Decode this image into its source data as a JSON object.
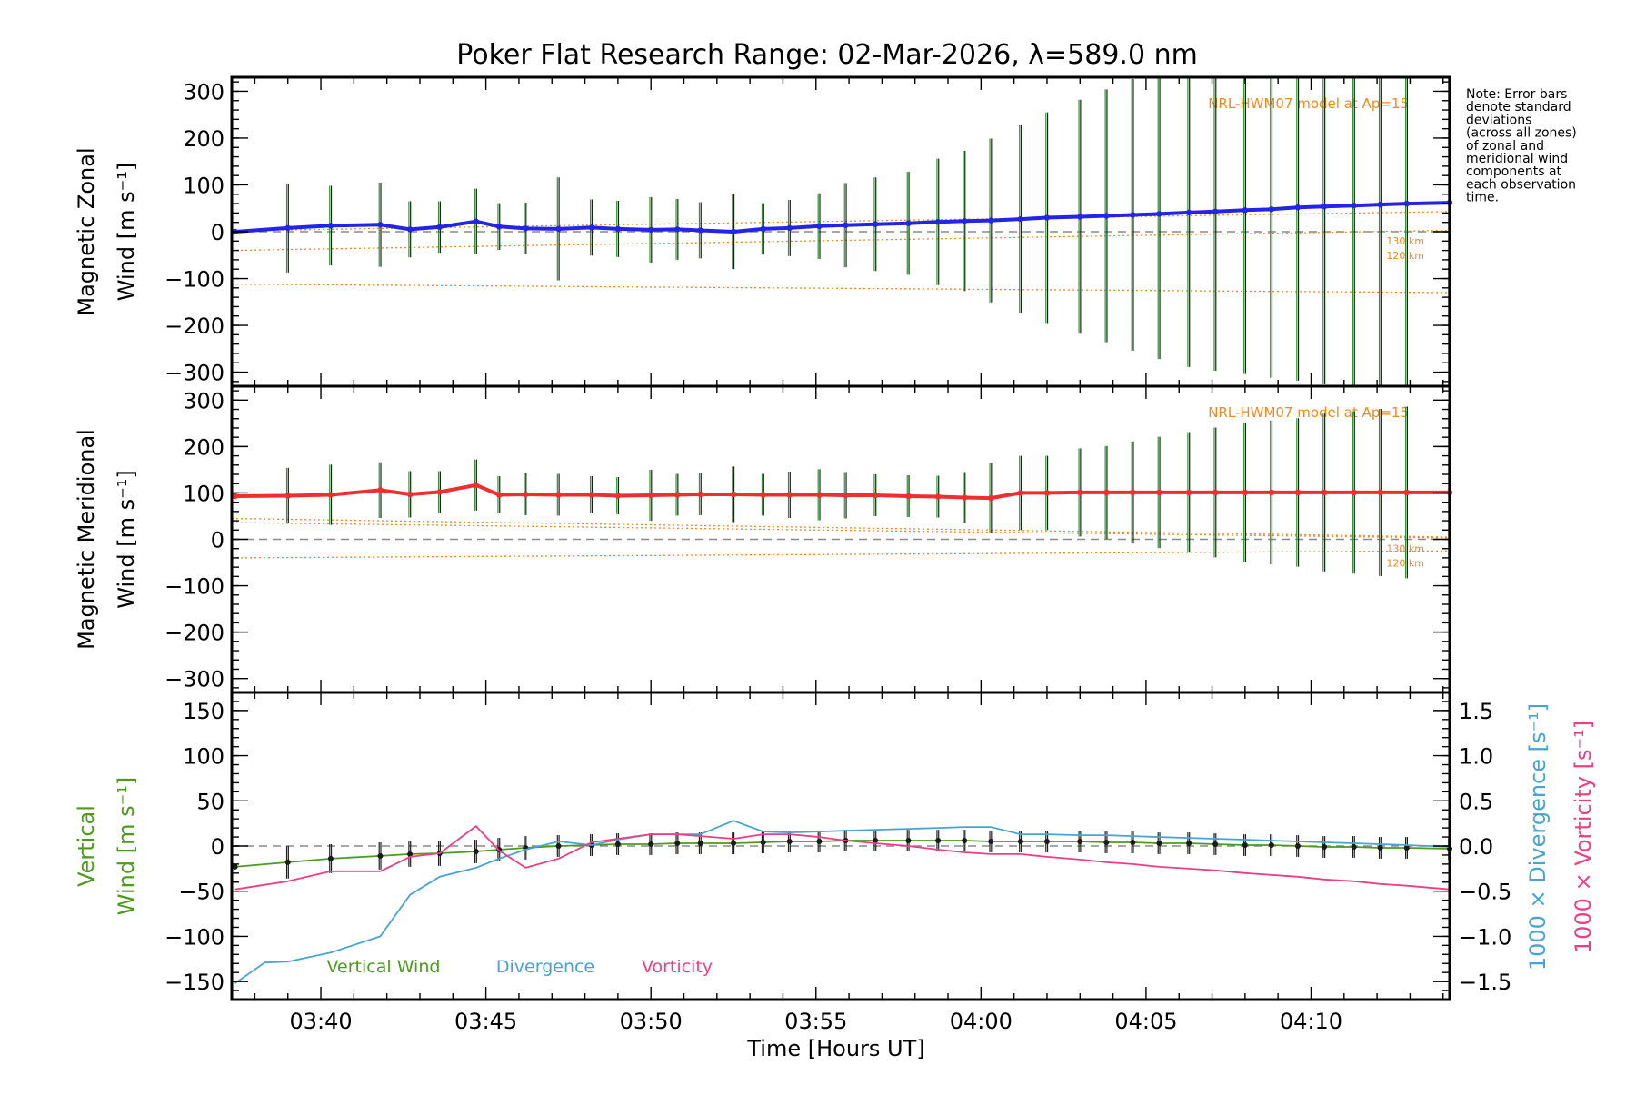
{
  "chart_data": {
    "type": "line",
    "title": "Poker Flat Research Range: 02-Mar-2026, λ=589.0 nm",
    "xlabel": "Time [Hours UT]",
    "x_ticks": [
      "03:40",
      "03:45",
      "03:50",
      "03:55",
      "04:00",
      "04:05",
      "04:10"
    ],
    "x_tick_minutes": [
      220,
      225,
      230,
      235,
      240,
      245,
      250
    ],
    "xlim_minutes": [
      217.3,
      254.2
    ],
    "note_lines": [
      "Note: Error bars",
      "denote standard",
      "deviations",
      "(across all zones)",
      "of zonal and",
      "meridional wind",
      "components at",
      "each observation",
      "time."
    ],
    "colors": {
      "zonal": "#2424e6",
      "meridional": "#ef2f2f",
      "vertical": "#4d9a1e",
      "divergence": "#4aa3d0",
      "vorticity": "#ee3f86",
      "model": "#ef8a1e",
      "err": "#1f1f1f",
      "zero": "#8a8a8a"
    },
    "panels": [
      {
        "id": "zonal",
        "ylabel_line1": "Magnetic Zonal",
        "ylabel_line2": "Wind [m s⁻¹]",
        "ylim": [
          -330,
          330
        ],
        "y_ticks": [
          300,
          200,
          100,
          0,
          -100,
          -200,
          -300
        ],
        "y_tick_labels": [
          "300",
          "200",
          "100",
          "0",
          "−100",
          "−200",
          "−300"
        ],
        "model_label": "NRL-HWM07 model at Ap=15",
        "alt_labels": [
          "130 km",
          "120 km"
        ],
        "model_lines": [
          {
            "start": 2,
            "end": 43
          },
          {
            "start": -40,
            "end": 3
          },
          {
            "start": -112,
            "end": -130
          }
        ],
        "series": {
          "name": "Magnetic Zonal Wind",
          "x": [
            217.4,
            219.0,
            220.3,
            221.8,
            222.7,
            223.6,
            224.7,
            225.4,
            226.2,
            227.2,
            228.2,
            229.0,
            230.0,
            230.8,
            231.5,
            232.5,
            233.4,
            234.2,
            235.1,
            235.9,
            236.8,
            237.8,
            238.7,
            239.5,
            240.3,
            241.2,
            242.0,
            243.0,
            243.8,
            244.6,
            245.4,
            246.3,
            247.1,
            248.0,
            248.8,
            249.6,
            250.4,
            251.3,
            252.1,
            252.9,
            254.2
          ],
          "y": [
            0,
            8,
            13,
            15,
            5,
            10,
            22,
            11,
            7,
            6,
            9,
            6,
            4,
            5,
            3,
            0,
            6,
            8,
            12,
            14,
            16,
            18,
            21,
            23,
            24,
            27,
            30,
            32,
            34,
            36,
            38,
            41,
            43,
            46,
            48,
            52,
            54,
            56,
            58,
            60,
            62
          ],
          "err": [
            0,
            95,
            85,
            90,
            60,
            55,
            70,
            50,
            55,
            110,
            60,
            60,
            70,
            65,
            60,
            80,
            55,
            60,
            70,
            90,
            100,
            110,
            135,
            150,
            175,
            200,
            225,
            250,
            270,
            290,
            310,
            330,
            340,
            350,
            360,
            370,
            380,
            390,
            400,
            410,
            420
          ]
        }
      },
      {
        "id": "meridional",
        "ylabel_line1": "Magnetic Meridional",
        "ylabel_line2": "Wind [m s⁻¹]",
        "ylim": [
          -330,
          330
        ],
        "y_ticks": [
          300,
          200,
          100,
          0,
          -100,
          -200,
          -300
        ],
        "y_tick_labels": [
          "300",
          "200",
          "100",
          "0",
          "−100",
          "−200",
          "−300"
        ],
        "model_label": "NRL-HWM07 model at Ap=15",
        "alt_labels": [
          "130 km",
          "120 km"
        ],
        "model_lines": [
          {
            "start": 36,
            "end": 3
          },
          {
            "start": -40,
            "end": -25
          },
          {
            "start": 45,
            "end": 5
          }
        ],
        "series": {
          "name": "Magnetic Meridional Wind",
          "x": [
            217.4,
            219.0,
            220.3,
            221.8,
            222.7,
            223.6,
            224.7,
            225.4,
            226.2,
            227.2,
            228.2,
            229.0,
            230.0,
            230.8,
            231.5,
            232.5,
            233.4,
            234.2,
            235.1,
            235.9,
            236.8,
            237.8,
            238.7,
            239.5,
            240.3,
            241.2,
            242.0,
            243.0,
            243.8,
            244.6,
            245.4,
            246.3,
            247.1,
            248.0,
            248.8,
            249.6,
            250.4,
            251.3,
            252.1,
            252.9,
            254.2
          ],
          "y": [
            93,
            94,
            96,
            106,
            97,
            102,
            117,
            96,
            97,
            96,
            96,
            94,
            95,
            96,
            97,
            97,
            96,
            96,
            96,
            95,
            95,
            93,
            92,
            90,
            89,
            100,
            100,
            101,
            101,
            101,
            101,
            101,
            101,
            101,
            101,
            101,
            101,
            101,
            101,
            101,
            101
          ],
          "err": [
            0,
            60,
            65,
            60,
            50,
            45,
            55,
            40,
            45,
            45,
            40,
            40,
            55,
            45,
            45,
            60,
            45,
            50,
            55,
            50,
            45,
            45,
            45,
            55,
            75,
            80,
            80,
            95,
            100,
            110,
            120,
            130,
            140,
            150,
            155,
            160,
            170,
            175,
            180,
            185,
            190
          ]
        }
      },
      {
        "id": "vertical",
        "ylabel_line1": "Vertical",
        "ylabel_line2": "Wind [m s⁻¹]",
        "right_label_1": "1000 × Divergence [s⁻¹]",
        "right_label_2": "1000 × Vorticity [s⁻¹]",
        "ylim": [
          -170,
          170
        ],
        "y_ticks": [
          150,
          100,
          50,
          0,
          -50,
          -100,
          -150
        ],
        "y_tick_labels": [
          "150",
          "100",
          "50",
          "0",
          "−50",
          "−100",
          "−150"
        ],
        "ylim_right": [
          -1.7,
          1.7
        ],
        "y_ticks_right": [
          1.5,
          1.0,
          0.5,
          0.0,
          -0.5,
          -1.0,
          -1.5
        ],
        "y_tick_labels_right": [
          "1.5",
          "1.0",
          "0.5",
          "0.0",
          "−0.5",
          "−1.0",
          "−1.5"
        ],
        "legend": [
          "Vertical Wind",
          "Divergence",
          "Vorticity"
        ],
        "series_vertical": {
          "name": "Vertical Wind",
          "x": [
            217.4,
            219.0,
            220.3,
            221.8,
            222.7,
            223.6,
            224.7,
            225.4,
            226.2,
            227.2,
            228.2,
            229.0,
            230.0,
            230.8,
            231.5,
            232.5,
            233.4,
            234.2,
            235.1,
            235.9,
            236.8,
            237.8,
            238.7,
            239.5,
            240.3,
            241.2,
            242.0,
            243.0,
            243.8,
            244.6,
            245.4,
            246.3,
            247.1,
            248.0,
            248.8,
            249.6,
            250.4,
            251.3,
            252.1,
            252.9,
            254.2
          ],
          "y": [
            -23,
            -18,
            -14,
            -11,
            -9,
            -8,
            -6,
            -4,
            -2,
            0,
            1,
            2,
            2,
            3,
            3,
            3,
            4,
            5,
            5,
            6,
            6,
            6,
            6,
            6,
            5,
            5,
            5,
            5,
            4,
            4,
            3,
            3,
            2,
            1,
            1,
            0,
            -1,
            -1,
            -2,
            -2,
            -3
          ],
          "err": [
            0,
            18,
            16,
            15,
            14,
            14,
            13,
            13,
            13,
            12,
            12,
            12,
            12,
            12,
            12,
            12,
            12,
            12,
            12,
            12,
            12,
            12,
            12,
            12,
            12,
            12,
            12,
            12,
            12,
            12,
            12,
            12,
            12,
            12,
            12,
            12,
            12,
            12,
            12,
            12,
            12
          ]
        },
        "series_divergence": {
          "name": "Divergence",
          "x": [
            217.4,
            218.3,
            219.0,
            220.3,
            221.8,
            222.7,
            223.6,
            224.7,
            225.4,
            226.2,
            227.2,
            228.2,
            229.0,
            230.0,
            230.8,
            231.5,
            232.5,
            233.4,
            234.2,
            235.1,
            235.9,
            236.8,
            237.8,
            238.7,
            239.5,
            240.3,
            241.2,
            242.0,
            243.0,
            243.8,
            244.6,
            245.4,
            246.3,
            247.1,
            248.0,
            248.8,
            249.6,
            250.4,
            251.3,
            252.1,
            252.9,
            254.2
          ],
          "y": [
            -1.52,
            -1.29,
            -1.28,
            -1.18,
            -1.0,
            -0.54,
            -0.34,
            -0.24,
            -0.14,
            -0.04,
            0.05,
            0.01,
            0.07,
            0.13,
            0.13,
            0.13,
            0.28,
            0.16,
            0.15,
            0.16,
            0.17,
            0.18,
            0.19,
            0.2,
            0.21,
            0.21,
            0.13,
            0.13,
            0.12,
            0.12,
            0.11,
            0.1,
            0.09,
            0.08,
            0.07,
            0.06,
            0.05,
            0.04,
            0.03,
            0.02,
            0.01,
            -0.01
          ]
        },
        "series_vorticity": {
          "name": "Vorticity",
          "x": [
            217.4,
            219.0,
            220.3,
            221.8,
            222.7,
            223.6,
            224.7,
            225.4,
            226.2,
            227.2,
            228.2,
            229.0,
            230.0,
            230.8,
            231.5,
            232.5,
            233.4,
            234.2,
            235.1,
            235.9,
            236.8,
            237.8,
            238.7,
            239.5,
            240.3,
            241.2,
            242.0,
            243.0,
            243.8,
            244.6,
            245.4,
            246.3,
            247.1,
            248.0,
            248.8,
            249.6,
            250.4,
            251.3,
            252.1,
            252.9,
            254.2
          ],
          "y": [
            -0.48,
            -0.39,
            -0.28,
            -0.28,
            -0.12,
            -0.08,
            0.22,
            -0.05,
            -0.24,
            -0.14,
            0.04,
            0.08,
            0.13,
            0.13,
            0.11,
            0.08,
            0.13,
            0.13,
            0.1,
            0.06,
            0.03,
            0.0,
            -0.04,
            -0.07,
            -0.09,
            -0.09,
            -0.12,
            -0.15,
            -0.18,
            -0.2,
            -0.23,
            -0.25,
            -0.27,
            -0.3,
            -0.32,
            -0.34,
            -0.37,
            -0.39,
            -0.42,
            -0.44,
            -0.48
          ]
        }
      }
    ]
  }
}
